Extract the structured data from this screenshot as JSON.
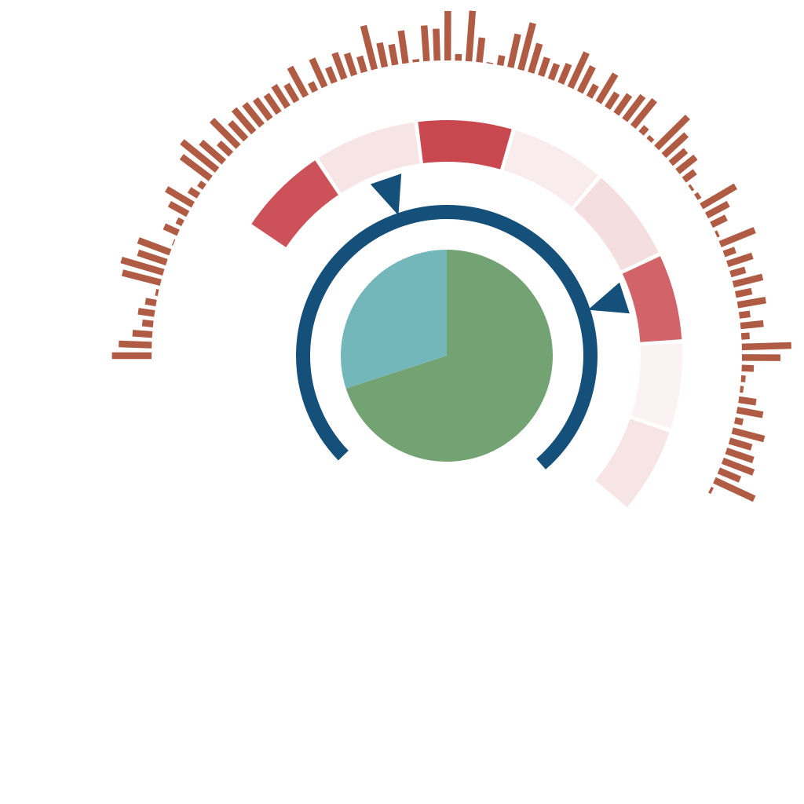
{
  "chart_data": [
    {
      "type": "pie",
      "title": "",
      "values": [
        70,
        30
      ],
      "colors": [
        "#73a373",
        "#73b7ba"
      ]
    },
    {
      "type": "radial-gauge",
      "arc_start_deg": -134,
      "arc_end_deg": 139,
      "arc_color": "#15507a",
      "pointer_angles_deg": [
        -19,
        72
      ]
    },
    {
      "type": "radial-heatmap",
      "segment_angles_deg": [
        [
          -56,
          -34
        ],
        [
          -33,
          -8
        ],
        [
          -7,
          16
        ],
        [
          17,
          40
        ],
        [
          41,
          64
        ],
        [
          65,
          86
        ],
        [
          87,
          108
        ],
        [
          109,
          130
        ]
      ],
      "intensities": [
        0.95,
        0.15,
        1.0,
        0.1,
        0.18,
        0.85,
        0.07,
        0.14
      ],
      "color": "#c9484f"
    },
    {
      "type": "radial-bar",
      "color": "#b05c45",
      "start_angle_deg": -90,
      "end_angle_deg": 117,
      "values": [
        0.72,
        0.6,
        0.36,
        0.2,
        0.3,
        0.2,
        0.05,
        0.72,
        0.8,
        0.55,
        0.62,
        0.02,
        0.28,
        0.12,
        0.38,
        0.56,
        0.2,
        0.12,
        0.66,
        0.82,
        0.55,
        0.3,
        0.68,
        0.42,
        0.55,
        0.5,
        0.45,
        0.4,
        0.46,
        0.36,
        0.6,
        0.18,
        0.56,
        0.3,
        0.5,
        0.42,
        0.3,
        0.82,
        0.45,
        0.38,
        0.6,
        0.05,
        0.65,
        0.58,
        0.9,
        0.12,
        0.92,
        0.45,
        0.02,
        0.18,
        0.62,
        0.88,
        0.55,
        0.35,
        0.3,
        0.38,
        0.7,
        0.52,
        0.25,
        0.6,
        0.32,
        0.42,
        0.55,
        0.62,
        0.15,
        0.08,
        0.8,
        0.56,
        0.36,
        0.42,
        0.25,
        0.05,
        0.08,
        0.72,
        0.45,
        0.3,
        0.05,
        0.68,
        0.22,
        0.48,
        0.28,
        0.55,
        0.3,
        0.52,
        0.2,
        0.42,
        0.15,
        0.9,
        0.7,
        0.22,
        0.08,
        0.06,
        0.32,
        0.48,
        0.15,
        0.6,
        0.42,
        0.52,
        0.6,
        0.42,
        0.8,
        0.05
      ]
    }
  ]
}
